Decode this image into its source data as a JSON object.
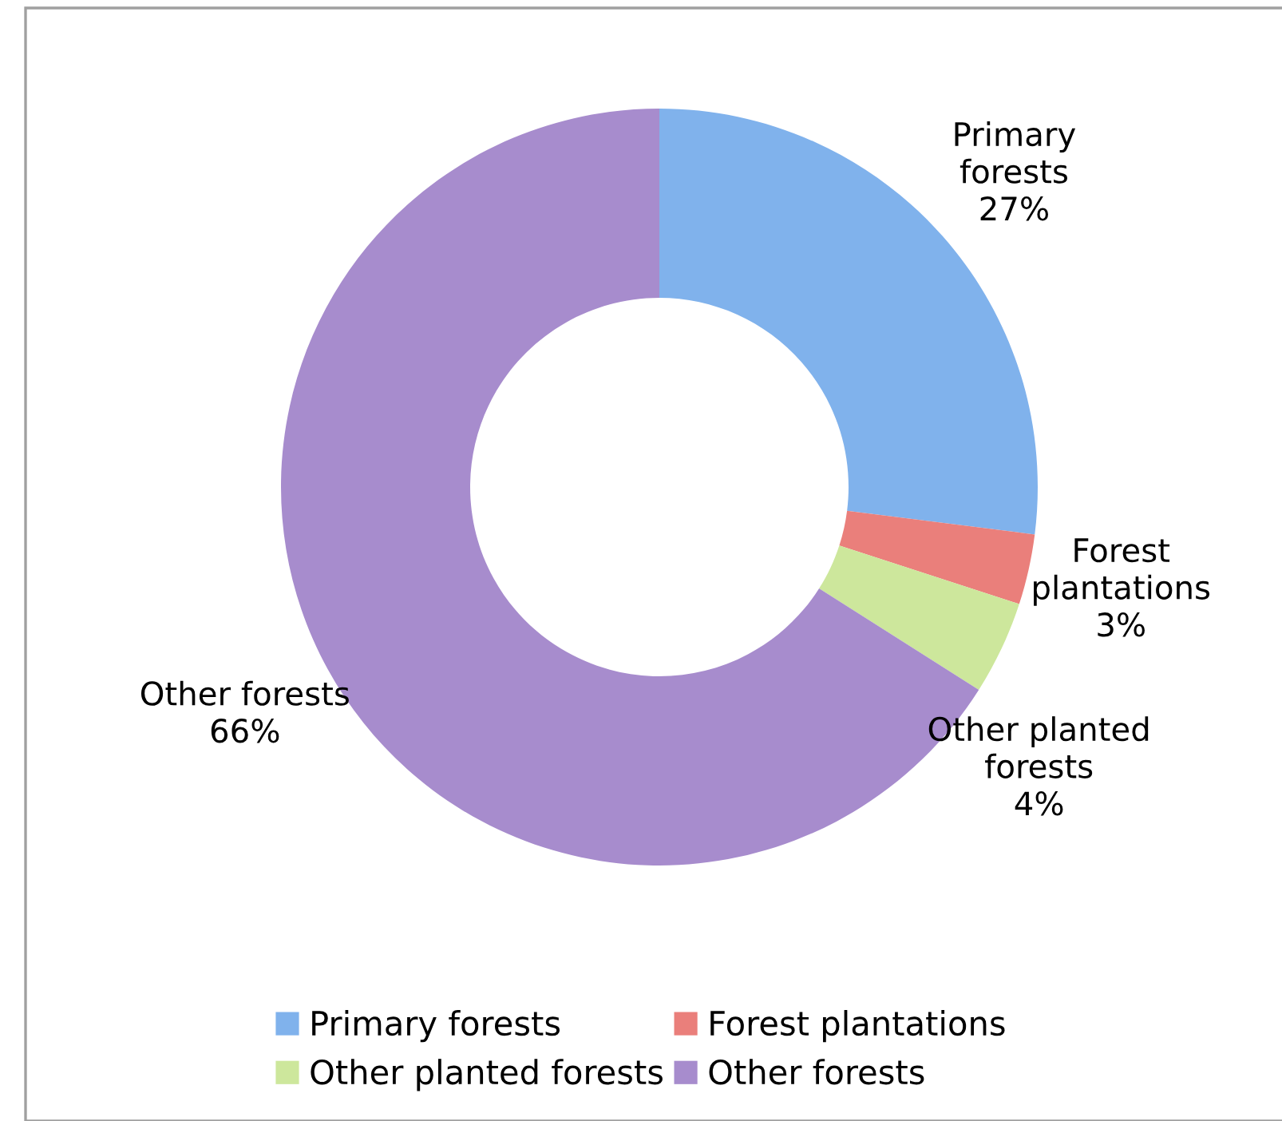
{
  "chart_data": {
    "type": "donut",
    "categories": [
      "Primary forests",
      "Forest plantations",
      "Other planted forests",
      "Other forests"
    ],
    "values": [
      27,
      3,
      4,
      66
    ],
    "value_labels": [
      "27%",
      "3%",
      "4%",
      "66%"
    ],
    "colors": [
      "#80b2ec",
      "#ea7f7b",
      "#cde79c",
      "#a78ccd"
    ],
    "legend": "bottom"
  }
}
